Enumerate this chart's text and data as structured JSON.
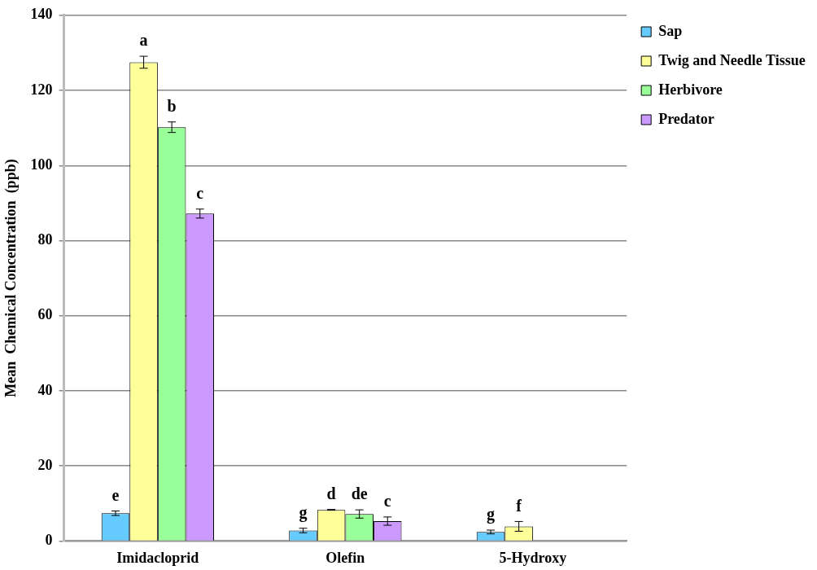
{
  "chart_data": {
    "type": "bar",
    "ylabel": "Mean  Chemical Concentration  (ppb)",
    "categories": [
      "Imidacloprid",
      "Olefin",
      "5-Hydroxy"
    ],
    "series": [
      {
        "name": "Sap",
        "color": "#66ccff",
        "values": [
          7.4,
          2.8,
          2.4
        ],
        "errors": [
          0.6,
          0.6,
          0.5
        ],
        "value_labels": [
          "e",
          "g",
          "g"
        ]
      },
      {
        "name": "Twig and Needle Tissue",
        "color": "#ffff99",
        "values": [
          127.5,
          8.3,
          3.9
        ],
        "errors": [
          1.6,
          0.1,
          1.3
        ],
        "value_labels": [
          "a",
          "d",
          "f"
        ]
      },
      {
        "name": "Herbivore",
        "color": "#99ff99",
        "values": [
          110.2,
          7.2,
          null
        ],
        "errors": [
          1.4,
          1.1,
          null
        ],
        "value_labels": [
          "b",
          "de",
          null
        ]
      },
      {
        "name": "Predator",
        "color": "#cc99ff",
        "values": [
          87.2,
          5.3,
          null
        ],
        "errors": [
          1.2,
          1.1,
          null
        ],
        "value_labels": [
          "c",
          "c",
          null
        ]
      }
    ],
    "ylim": [
      0,
      140
    ],
    "yticks": [
      0,
      20,
      40,
      60,
      80,
      100,
      120,
      140
    ],
    "grid": "y",
    "legend": "right"
  }
}
